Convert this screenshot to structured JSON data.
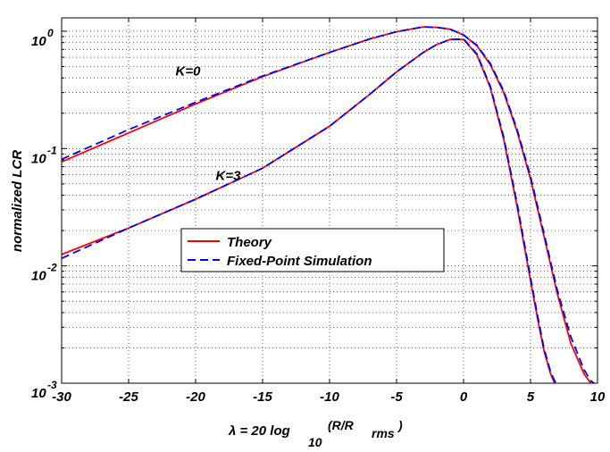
{
  "chart_data": {
    "type": "line",
    "title": "",
    "xlabel": {
      "main": "λ = 20 log",
      "sub": "10",
      "sup_main": "(R/R",
      "sup_sub": "rms",
      "sup_end": ")"
    },
    "ylabel": "normalized LCR",
    "xlim": [
      -30,
      10
    ],
    "ylim": [
      0.001,
      1.3
    ],
    "yscale": "log",
    "grid": true,
    "x_ticks": [
      -30,
      -25,
      -20,
      -15,
      -10,
      -5,
      0,
      5,
      10
    ],
    "x_tick_labels": [
      "-30",
      "-25",
      "-20",
      "-15",
      "-10",
      "-5",
      "0",
      "5",
      "10"
    ],
    "y_ticks": [
      {
        "value": 0.001,
        "base": "10",
        "exp": "-3"
      },
      {
        "value": 0.01,
        "base": "10",
        "exp": "-2"
      },
      {
        "value": 0.1,
        "base": "10",
        "exp": "-1"
      },
      {
        "value": 1,
        "base": "10",
        "exp": "0"
      }
    ],
    "legend": {
      "position": "center-left",
      "entries": [
        {
          "label": "Theory",
          "color": "#ff0000",
          "dash": "solid"
        },
        {
          "label": "Fixed-Point Simulation",
          "color": "#0000ff",
          "dash": "dashed"
        }
      ]
    },
    "annotations": [
      {
        "text": "K=0",
        "x": -21.5,
        "y": 0.42
      },
      {
        "text": "K=3",
        "x": -18.5,
        "y": 0.054
      }
    ],
    "series": [
      {
        "curve": "K=0",
        "legend_ref": "Theory",
        "color": "#ff0000",
        "dash": "solid",
        "x": [
          -30,
          -25,
          -20,
          -15,
          -10,
          -7,
          -5,
          -3,
          -2,
          -1,
          0,
          1,
          2,
          3,
          4,
          5,
          6,
          7,
          8,
          9,
          9.5,
          10
        ],
        "y": [
          0.077,
          0.136,
          0.24,
          0.41,
          0.66,
          0.86,
          0.99,
          1.09,
          1.08,
          1.04,
          0.93,
          0.75,
          0.52,
          0.3,
          0.14,
          0.055,
          0.018,
          0.0058,
          0.0022,
          0.0012,
          0.001,
          0.0009
        ]
      },
      {
        "curve": "K=0",
        "legend_ref": "Fixed-Point Simulation",
        "color": "#0000ff",
        "dash": "dashed",
        "x": [
          -30,
          -25,
          -20,
          -15,
          -10,
          -7,
          -5,
          -3,
          -2,
          -1,
          0,
          1,
          2,
          3,
          4,
          5,
          6,
          7,
          8,
          9,
          9.5,
          10
        ],
        "y": [
          0.081,
          0.145,
          0.248,
          0.415,
          0.66,
          0.86,
          0.99,
          1.09,
          1.08,
          1.04,
          0.93,
          0.76,
          0.53,
          0.31,
          0.145,
          0.058,
          0.019,
          0.0062,
          0.0025,
          0.0013,
          0.00105,
          0.00095
        ]
      },
      {
        "curve": "K=3",
        "legend_ref": "Theory",
        "color": "#ff0000",
        "dash": "solid",
        "x": [
          -30,
          -25,
          -20,
          -15,
          -10,
          -7,
          -5,
          -3,
          -2,
          -1,
          0,
          1,
          2,
          3,
          4,
          5,
          5.5,
          6,
          6.5,
          6.8,
          7
        ],
        "y": [
          0.0125,
          0.021,
          0.037,
          0.068,
          0.155,
          0.29,
          0.45,
          0.66,
          0.77,
          0.85,
          0.85,
          0.63,
          0.33,
          0.12,
          0.032,
          0.0075,
          0.0037,
          0.0019,
          0.0012,
          0.001,
          0.0009
        ]
      },
      {
        "curve": "K=3",
        "legend_ref": "Fixed-Point Simulation",
        "color": "#0000ff",
        "dash": "dashed",
        "x": [
          -30,
          -25,
          -20,
          -15,
          -10,
          -7,
          -5,
          -3,
          -2,
          -1,
          0,
          1,
          2,
          3,
          4,
          5,
          5.5,
          6,
          6.5,
          6.8,
          7
        ],
        "y": [
          0.0116,
          0.021,
          0.037,
          0.068,
          0.155,
          0.29,
          0.45,
          0.66,
          0.77,
          0.85,
          0.86,
          0.64,
          0.34,
          0.125,
          0.034,
          0.008,
          0.0039,
          0.002,
          0.00125,
          0.00105,
          0.00095
        ]
      }
    ]
  }
}
